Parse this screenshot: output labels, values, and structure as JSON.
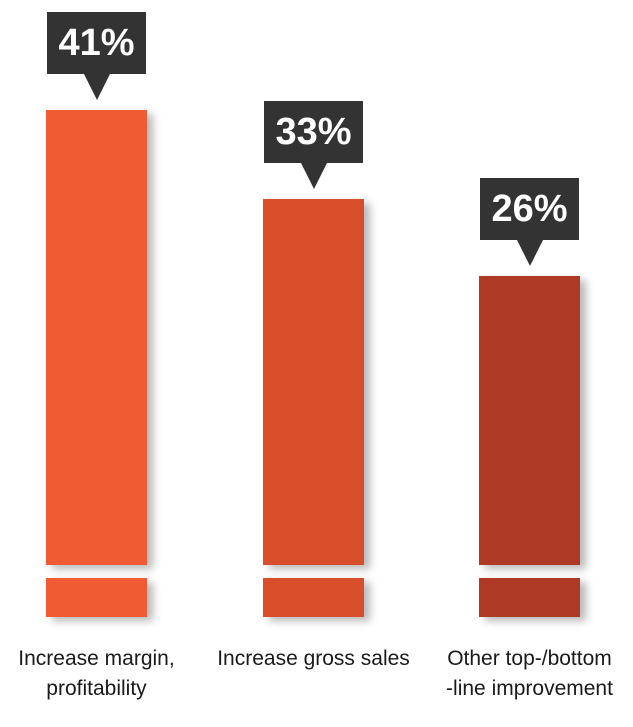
{
  "chart_data": {
    "type": "bar",
    "categories": [
      "Increase margin,\nprofitability",
      "Increase gross sales",
      "Other top-/bottom\n-line improvement"
    ],
    "values": [
      41,
      33,
      26
    ],
    "value_labels": [
      "41%",
      "33%",
      "26%"
    ],
    "colors": [
      "#f05b33",
      "#d84e2b",
      "#ae3a25"
    ]
  }
}
